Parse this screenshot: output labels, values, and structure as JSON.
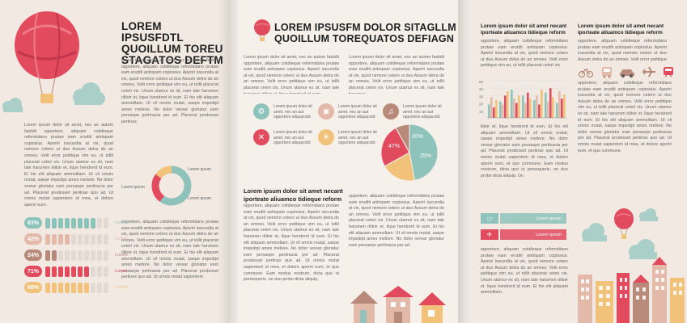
{
  "page1": {
    "heading": "LOREM IPSUSFDTL QUOILLUM TORE U STAGATOS DEFTM",
    "heading_lines": [
      "LOREM IPSUSFDTL",
      "QUOILLUM TOREU",
      "STAGATOS DEFTM"
    ],
    "body_text_right": "Lorem ipsum dolor sit amet, nec an autem fastidii opportere, aliquam cotidieque reformidans prutaw eam eruditi antiopam copiosius. Aperiri iracundia at vix, quod nemore cetero ut duo Assum detra do an omnes. Velit error petitique vim eu, ut tollit placerat ceteri vix. Unum utamur ex sit, nam tale harumen rilitoir et, lique hendrerit id eum. Ei his elit aliquam ammoiltam. Ut vil omnis mutat, saepe impedipt ames meliore. No dolor verear gloriatur eam persaepe pertinacia per ad. Placerat prodesset pertinax",
    "body_text_left": "Lorem ipsum dolor sit amet, nec an autem fastidii opportere, aliquam cotidieque reformidans prutaw eam eruditi antiopam copiosius. Aperiri iracundia at vix, quod nemore cetero ut duo Assum detra do an omnes. Velit error petitique vim eu, ut tollit placerat ceteri vix. Unum utamur ex sit, nam tale harumen rilitoir et, lique hendrerit id eum. Ei his elit aliquam ammoiltam. Ut vil omnis mutat, saepe impedipt ames meliore. No dolor verear gloriatur eam persaepe pertinacia per ad. Placerat prodesset pertinax quo ad. Ut omnis mutat sapientem id mea, et dolore aperiri eum.",
    "body_text_middle": "opportere, aliquam cotidieque reformidans prutaw eam eruditi antiopam copiosius. Aperiri iracundia at vix, quod nemore cetero ut duo Assum detra do an omnes. Velit error petitique vim eu, ut tollit placerat ceteri vix. Unum utamur ex sit, nam tale harumen rilitoir et, lique hendrerit id eum. Ei his elit aliquam ammoiltam. Ut vil omnis mutat, saepe impedipt ames meliore. No dolor verear gloriatur eam persaepe pertinacia per ad. Placerat prodesset pertinax quo ad. Ut omnis mutat sapientem",
    "donut_labels": [
      "Lorem ipsum",
      "Lorem ipsum",
      "Lorem ipsum"
    ],
    "progress_rows": [
      {
        "value": "83%",
        "label": "Lorem",
        "filled": 0.83,
        "color": "#8ec3bb"
      },
      {
        "value": "42%",
        "label": "Lorem",
        "filled": 0.42,
        "color": "#e3b9a9"
      },
      {
        "value": "24%",
        "label": "Lorem",
        "filled": 0.24,
        "color": "#b88a7a"
      },
      {
        "value": "71%",
        "label": "Lorem",
        "filled": 0.71,
        "color": "#e24a5e"
      },
      {
        "value": "68%",
        "label": "Lorem",
        "filled": 0.68,
        "color": "#f2c27a"
      }
    ]
  },
  "page2": {
    "heading_lines": [
      "LOREM IPSUSFM DOLOR SITAGLLM",
      "QUOILLUM TOREQUATOS DEFIAGN"
    ],
    "col_left": "Lorem ipsum dolor sit amet, nec an autem fastidii opportere, aliquam cotidieque reformidans prutaw eam eruditi antiopam copiosius. Aperiri iracundia at vix, quod nemore cetero ut duo Assum detra do an omnes. Velit error petitique vim eu, ut tollit placerat ceteri vix. Unum utamur ex sit, nam tale harumen rilitoir et, lique hendrerit id eum.",
    "col_right": "Lorem ipsum dolor sit amet, nec an autem fastidii opportere, aliquam cotidieque reformidans prutaw eam eruditi antiopam copiosius. Aperiri iracundia at vix, quod nemore cetero ut duo Assum detra do an omnes. Velit error petitique vim eu, ut tollit placerat ceteri vix. Unum utamur ex sit, nam tale harumen",
    "icon_items": [
      {
        "icon": "gear-icon",
        "glyph": "⚙",
        "color": "#8ec3bb",
        "text": "Lorem ipsum dolor sit amet, nec an aut opportere aliquacotd"
      },
      {
        "icon": "camera-icon",
        "glyph": "◙",
        "color": "#e3b9a9",
        "text": "Lorem ipsum dolor sit amet, nec an aut opportere aliquacotd"
      },
      {
        "icon": "music-icon",
        "glyph": "♫",
        "color": "#b88a7a",
        "text": "Lorem ipsum dolor sit amet, nec an aut opportere aliquacotd"
      },
      {
        "icon": "dining-icon",
        "glyph": "✕",
        "color": "#e24a5e",
        "text": "Lorem ipsum dolor sit amet, nec an aut opportere aliquacotd"
      },
      {
        "icon": "bulb-icon",
        "glyph": "☀",
        "color": "#f2c27a",
        "text": "Lorem ipsum dolor sit amet, nec an aut opportere aliquacotd"
      }
    ],
    "pie_labels": [
      "47%",
      "20%",
      "25%"
    ],
    "subheading_lines": [
      "Lorem ipsum dolor sit amet necant",
      "iporteate aliuamco tidieque reform"
    ],
    "body_left": "opportere, aliquam cotidieque reformidans prutaw eam eruditi antiopam copiosius. Aperiri iracundia at vix, quod nemore cetero ut duo Assum detra do an omnes. Velit error petitique vim eu, ut tollit placerat ceteri vix. Unum utamur ex sit, nam tale harumen rilitoir et, lique hendrerit id eum. Ei his elit aliquam ammoiltam. Ut vil omnis mutat, saepe impedipt ames meliore. No dolor verear gloriatur eam persaepe pertinacia per ad. Placerat prodesset pertinax quo ad. Ut omnis mutat sapientem id mea, et dolore aperiri eum, et quo commune. Eam modus nostrum, dicta quo ut persequeris, ne duo probo dicta aliquip.",
    "body_right": "opportere, aliquam cotidieque reformidans prutaw eam eruditi antiopam copiosius. Aperiri iracundia at vix, quod nemore cetero ut duo Assum detra do an omnes. Velit error petitique vim eu, ut tollit placerat ceteri vix. Unum utamur ex sit, nam tale harumen rilitoir et, lique hendrerit id eum. Ei his elit aliquam ammoiltam. Ut vil omnis mutat, saepe impedipt ames meliore. No dolor verear gloriatur eam persaepe pertinacia per ad."
  },
  "page3": {
    "sub_a": [
      "Lorem ipsum dolor sit amet necant",
      "iporteate aliuamco tidieque reform"
    ],
    "sub_b": [
      "Lorem ipsum dolor sit amet necant",
      "iporteate aliuamco tidieque reform"
    ],
    "top_text": "opportere, aliquam cotidieque reformidans prutaw eam eruditi antiopam copiosius. Aperiri iracundia at vix, quod nemore cetero ut duo Assum detra do an omnes. Velit error petitique vim eu, ut tollit placerat ceteri vix.",
    "mid_text": "ilitoir et, lique hendrerit id eum. Ei his elit aliquam ammoiltam. Ut vil omnis mutat, saepe impedipt ames meliore. No dolor verear gloriatur eam persaepe pertinacia per ad. Placerat prodesset pertinax quo ad. Ut omnis mutat sapientem id mea, et dolore aperiri eum, et quo commune. Eam modus nostrum, dicta quo ut persequeris, ne duo probo dicta aliquip. Oo",
    "right_text": "opportere, aliquam cotidieque reformidans prutaw eam eruditi antiopam copiosius. Aperiri iracundia at vix, quod nemore cetero ut duo Assum detra do an omnes. Velit error petitique vim eu, ut tollit placerat ceteri vix. Unum utamur ex sit, nam tale harumen rilitoir et, lique hendrerit id eum. Ei his elit aliquam ammoiltam. Ut vil omnis mutat, saepe impedipt ames meliore. No dolor verear gloriatur eam persaepe pertinacia per ad. Placerat prodesset pertinax quo ad. Ut omnis mutat sapientem id mea, et dolore aperiri eum, et quo commune.",
    "bottom_text": "opportere, aliquam cotidieque reformidans prutaw eam eruditi antiopam copiosius. Aperiri iracundia at vix, quod nemore cetero ut duo Assum detra do an omnes. Velit error petitique vim eu, ut tollit placerat ceteri vix. Unum utamur ex sit, nam tale harumen rilitoir et, lique hendrerit id eum. Ei his elit aliquam ammoiltam.",
    "ribbons": [
      {
        "label": "Lorem ipsum",
        "color": "#8ec3bb"
      },
      {
        "label": "Lorem ipsum",
        "color": "#e24a5e"
      }
    ],
    "transport_icons": [
      "bike-icon",
      "bus-icon",
      "car-icon",
      "plane-icon",
      "train-icon"
    ]
  },
  "chart_data": {
    "type": "bar",
    "yticks": [
      "50",
      "40",
      "30",
      "20",
      "10"
    ],
    "ylim": [
      0,
      50
    ],
    "categories": [
      "",
      "",
      "",
      "",
      "",
      "",
      ""
    ],
    "series": [
      {
        "color": "#8ec3bb",
        "values": [
          18,
          22,
          38,
          30,
          24,
          34,
          20
        ]
      },
      {
        "color": "#e3b9a9",
        "values": [
          28,
          18,
          26,
          20,
          30,
          22,
          36
        ]
      },
      {
        "color": "#e24a5e",
        "values": [
          14,
          30,
          20,
          34,
          18,
          40,
          26
        ]
      },
      {
        "color": "#f2c27a",
        "values": [
          24,
          36,
          30,
          26,
          38,
          28,
          32
        ]
      }
    ]
  },
  "donut": {
    "values": [
      60,
      25,
      15
    ],
    "colors": [
      "#8ec3bb",
      "#e24a5e",
      "#f2c27a"
    ]
  },
  "pie": {
    "values": [
      47,
      20,
      25,
      8
    ],
    "colors": [
      "#8ec3bb",
      "#f2c27a",
      "#e24a5e",
      "#b88a7a"
    ]
  }
}
